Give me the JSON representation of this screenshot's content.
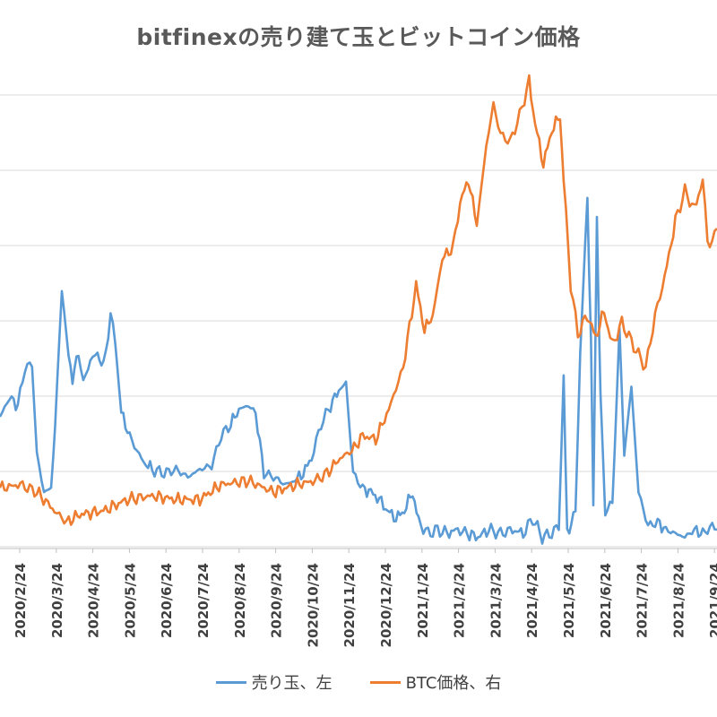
{
  "chart_data": {
    "type": "line",
    "title": "bitfinexの売り建て玉とビットコイン価格",
    "x_tick_labels": [
      "2020/2/24",
      "2020/3/24",
      "2020/4/24",
      "2020/5/24",
      "2020/6/24",
      "2020/7/24",
      "2020/8/24",
      "2020/9/24",
      "2020/10/24",
      "2020/11/24",
      "2020/12/24",
      "2021/1/24",
      "2021/2/24",
      "2021/3/24",
      "2021/4/24",
      "2021/5/24",
      "2021/6/24",
      "2021/7/24",
      "2021/8/24",
      "2021/9/24"
    ],
    "grid": true,
    "legend_position": "bottom",
    "series": [
      {
        "name": "売り玉、左",
        "axis": "left",
        "color": "#5B9BD5",
        "points": [
          [
            "2020/1/24",
            0.35
          ],
          [
            "2020/2/1",
            0.4
          ],
          [
            "2020/2/8",
            0.38
          ],
          [
            "2020/2/14",
            0.48
          ],
          [
            "2020/2/20",
            0.49
          ],
          [
            "2020/2/24",
            0.25
          ],
          [
            "2020/3/1",
            0.15
          ],
          [
            "2020/3/7",
            0.16
          ],
          [
            "2020/3/12",
            0.42
          ],
          [
            "2020/3/16",
            0.7
          ],
          [
            "2020/3/20",
            0.55
          ],
          [
            "2020/3/25",
            0.45
          ],
          [
            "2020/3/30",
            0.52
          ],
          [
            "2020/4/3",
            0.44
          ],
          [
            "2020/4/9",
            0.5
          ],
          [
            "2020/4/15",
            0.52
          ],
          [
            "2020/4/20",
            0.48
          ],
          [
            "2020/4/26",
            0.62
          ],
          [
            "2020/4/30",
            0.55
          ],
          [
            "2020/5/5",
            0.36
          ],
          [
            "2020/5/12",
            0.3
          ],
          [
            "2020/5/18",
            0.26
          ],
          [
            "2020/5/24",
            0.23
          ],
          [
            "2020/5/31",
            0.21
          ],
          [
            "2020/6/10",
            0.2
          ],
          [
            "2020/6/20",
            0.21
          ],
          [
            "2020/6/30",
            0.19
          ],
          [
            "2020/7/10",
            0.21
          ],
          [
            "2020/7/20",
            0.22
          ],
          [
            "2020/7/28",
            0.3
          ],
          [
            "2020/8/5",
            0.33
          ],
          [
            "2020/8/12",
            0.37
          ],
          [
            "2020/8/20",
            0.38
          ],
          [
            "2020/8/26",
            0.36
          ],
          [
            "2020/9/2",
            0.2
          ],
          [
            "2020/9/10",
            0.19
          ],
          [
            "2020/9/20",
            0.17
          ],
          [
            "2020/9/28",
            0.18
          ],
          [
            "2020/10/5",
            0.2
          ],
          [
            "2020/10/12",
            0.24
          ],
          [
            "2020/10/20",
            0.33
          ],
          [
            "2020/10/28",
            0.38
          ],
          [
            "2020/11/4",
            0.42
          ],
          [
            "2020/11/10",
            0.44
          ],
          [
            "2020/11/16",
            0.2
          ],
          [
            "2020/11/24",
            0.16
          ],
          [
            "2020/12/1",
            0.15
          ],
          [
            "2020/12/8",
            0.13
          ],
          [
            "2020/12/15",
            0.1
          ],
          [
            "2020/12/22",
            0.08
          ],
          [
            "2020/12/29",
            0.1
          ],
          [
            "2021/1/5",
            0.15
          ],
          [
            "2021/1/10",
            0.07
          ],
          [
            "2021/1/18",
            0.04
          ],
          [
            "2021/1/26",
            0.05
          ],
          [
            "2021/2/3",
            0.04
          ],
          [
            "2021/2/12",
            0.05
          ],
          [
            "2021/2/20",
            0.04
          ],
          [
            "2021/3/1",
            0.03
          ],
          [
            "2021/3/10",
            0.05
          ],
          [
            "2021/3/20",
            0.04
          ],
          [
            "2021/3/30",
            0.05
          ],
          [
            "2021/4/8",
            0.04
          ],
          [
            "2021/4/16",
            0.08
          ],
          [
            "2021/4/24",
            0.03
          ],
          [
            "2021/5/2",
            0.04
          ],
          [
            "2021/5/8",
            0.06
          ],
          [
            "2021/5/12",
            0.45
          ],
          [
            "2021/5/15",
            0.04
          ],
          [
            "2021/5/22",
            0.1
          ],
          [
            "2021/5/26",
            0.52
          ],
          [
            "2021/5/30",
            0.8
          ],
          [
            "2021/6/1",
            0.93
          ],
          [
            "2021/6/4",
            0.55
          ],
          [
            "2021/6/6",
            0.1
          ],
          [
            "2021/6/9",
            0.88
          ],
          [
            "2021/6/12",
            0.4
          ],
          [
            "2021/6/16",
            0.1
          ],
          [
            "2021/6/22",
            0.12
          ],
          [
            "2021/6/28",
            0.58
          ],
          [
            "2021/7/2",
            0.25
          ],
          [
            "2021/7/8",
            0.43
          ],
          [
            "2021/7/14",
            0.15
          ],
          [
            "2021/7/22",
            0.06
          ],
          [
            "2021/7/30",
            0.07
          ],
          [
            "2021/8/6",
            0.05
          ],
          [
            "2021/8/14",
            0.04
          ],
          [
            "2021/8/22",
            0.03
          ],
          [
            "2021/8/30",
            0.05
          ],
          [
            "2021/9/6",
            0.04
          ],
          [
            "2021/9/14",
            0.06
          ],
          [
            "2021/9/18",
            0.05
          ]
        ]
      },
      {
        "name": "BTC価格、右",
        "axis": "right",
        "color": "#ED7D31",
        "points": [
          [
            "2020/1/24",
            0.16
          ],
          [
            "2020/2/10",
            0.17
          ],
          [
            "2020/2/24",
            0.15
          ],
          [
            "2020/3/10",
            0.1
          ],
          [
            "2020/3/20",
            0.07
          ],
          [
            "2020/3/31",
            0.09
          ],
          [
            "2020/4/20",
            0.1
          ],
          [
            "2020/5/10",
            0.13
          ],
          [
            "2020/5/31",
            0.14
          ],
          [
            "2020/6/20",
            0.13
          ],
          [
            "2020/7/10",
            0.13
          ],
          [
            "2020/7/28",
            0.17
          ],
          [
            "2020/8/20",
            0.18
          ],
          [
            "2020/9/10",
            0.15
          ],
          [
            "2020/9/30",
            0.17
          ],
          [
            "2020/10/15",
            0.18
          ],
          [
            "2020/10/25",
            0.2
          ],
          [
            "2020/11/5",
            0.24
          ],
          [
            "2020/11/15",
            0.26
          ],
          [
            "2020/11/24",
            0.3
          ],
          [
            "2020/12/5",
            0.29
          ],
          [
            "2020/12/16",
            0.37
          ],
          [
            "2020/12/28",
            0.48
          ],
          [
            "2021/1/8",
            0.7
          ],
          [
            "2021/1/15",
            0.58
          ],
          [
            "2021/1/22",
            0.62
          ],
          [
            "2021/1/30",
            0.77
          ],
          [
            "2021/2/8",
            0.8
          ],
          [
            "2021/2/14",
            0.92
          ],
          [
            "2021/2/21",
            0.98
          ],
          [
            "2021/2/28",
            0.86
          ],
          [
            "2021/3/8",
            1.07
          ],
          [
            "2021/3/14",
            1.18
          ],
          [
            "2021/3/20",
            1.1
          ],
          [
            "2021/3/28",
            1.08
          ],
          [
            "2021/4/5",
            1.15
          ],
          [
            "2021/4/13",
            1.24
          ],
          [
            "2021/4/18",
            1.13
          ],
          [
            "2021/4/25",
            1.02
          ],
          [
            "2021/5/2",
            1.11
          ],
          [
            "2021/5/9",
            1.15
          ],
          [
            "2021/5/12",
            0.98
          ],
          [
            "2021/5/18",
            0.7
          ],
          [
            "2021/5/24",
            0.57
          ],
          [
            "2021/6/1",
            0.62
          ],
          [
            "2021/6/8",
            0.56
          ],
          [
            "2021/6/15",
            0.63
          ],
          [
            "2021/6/22",
            0.54
          ],
          [
            "2021/6/30",
            0.6
          ],
          [
            "2021/7/8",
            0.55
          ],
          [
            "2021/7/20",
            0.48
          ],
          [
            "2021/7/28",
            0.62
          ],
          [
            "2021/8/5",
            0.72
          ],
          [
            "2021/8/14",
            0.87
          ],
          [
            "2021/8/22",
            0.95
          ],
          [
            "2021/8/30",
            0.9
          ],
          [
            "2021/9/6",
            0.98
          ],
          [
            "2021/9/10",
            0.82
          ],
          [
            "2021/9/14",
            0.81
          ],
          [
            "2021/9/18",
            0.85
          ]
        ]
      }
    ]
  },
  "legend": {
    "short_label": "売り玉、左",
    "btc_label": "BTC価格、右"
  }
}
